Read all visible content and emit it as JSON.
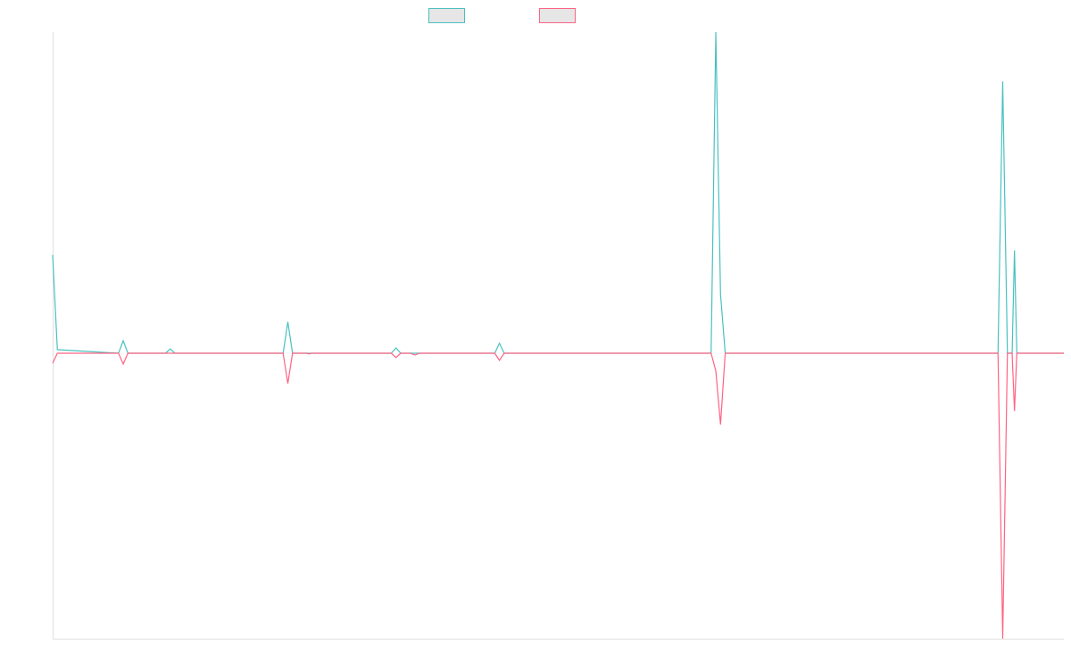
{
  "chart_data": {
    "type": "line",
    "x": [
      0,
      1,
      14,
      15,
      16,
      24,
      25,
      26,
      49,
      50,
      51,
      54,
      54.5,
      55,
      72,
      73,
      74,
      76,
      77,
      78,
      94,
      95,
      96,
      140,
      141,
      142,
      143,
      201,
      202,
      203,
      204,
      204.5,
      205,
      215
    ],
    "series": [
      {
        "color": "#4bc0c0",
        "values": [
          2.75,
          0.1,
          0,
          0.35,
          0,
          0,
          0.12,
          0,
          0,
          0.88,
          0,
          0,
          0,
          0,
          0,
          0.15,
          0,
          0,
          0,
          0,
          0,
          0.28,
          0,
          0,
          9,
          1.65,
          0,
          0,
          7.62,
          0,
          0,
          2.88,
          0,
          0
        ]
      },
      {
        "color": "#ff6384",
        "values": [
          -0.28,
          0,
          0,
          -0.3,
          0,
          0,
          0,
          0,
          0,
          -0.85,
          0,
          0,
          -0.02,
          0,
          0,
          -0.12,
          0,
          0,
          -0.05,
          0,
          0,
          -0.2,
          0,
          0,
          -0.5,
          -2,
          0,
          0,
          -8,
          0,
          0,
          -1.62,
          0,
          0
        ]
      }
    ],
    "xlim": [
      0,
      215
    ],
    "ylim": [
      -8,
      9
    ],
    "grid": false
  }
}
